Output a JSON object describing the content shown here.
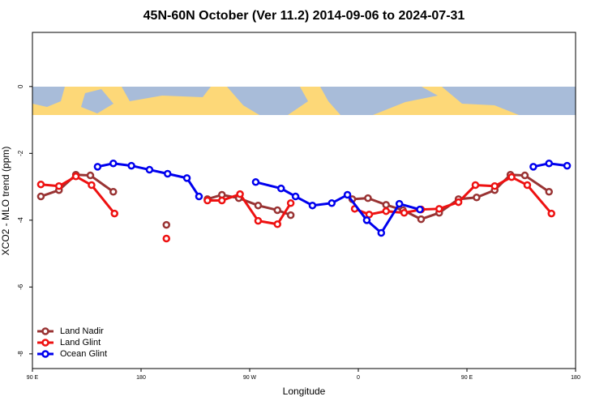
{
  "chart_data": {
    "type": "line",
    "title": "45N-60N October (Ver 11.2)   2014-09-06 to 2024-07-31",
    "xlabel": "Longitude",
    "ylabel": "XCO2 - MLO trend (ppm)",
    "xlim": [
      90,
      540
    ],
    "ylim": [
      -8.44,
      1.62
    ],
    "xticks": [
      {
        "value": 90,
        "label": "90 E"
      },
      180,
      {
        "value": 270,
        "label": "90 W"
      },
      {
        "value": 360,
        "label": "0"
      },
      {
        "value": 450,
        "label": "90 E"
      },
      {
        "value": 540,
        "label": "180"
      }
    ],
    "yticks": [
      0,
      -2,
      -4,
      -6,
      -8
    ],
    "legend": "bottom-left",
    "series": [
      {
        "name": "Land Nadir",
        "color": "#993333",
        "x": [
          97,
          112,
          126,
          138,
          157,
          null,
          201,
          null,
          235,
          247,
          261,
          277,
          293,
          304,
          null,
          355,
          368,
          383,
          397,
          412,
          427,
          443,
          458,
          473,
          486,
          498,
          518
        ],
        "values": [
          -3.29,
          -3.1,
          -2.64,
          -2.66,
          -3.15,
          null,
          -4.14,
          null,
          -3.37,
          -3.24,
          -3.34,
          -3.56,
          -3.7,
          -3.85,
          null,
          -3.37,
          -3.34,
          -3.54,
          -3.7,
          -3.97,
          -3.78,
          -3.37,
          -3.32,
          -3.1,
          -2.64,
          -2.66,
          -3.15
        ]
      },
      {
        "name": "Land Glint",
        "color": "#ee1111",
        "x": [
          97,
          112,
          126,
          139,
          158,
          null,
          201,
          null,
          235,
          247,
          262,
          277,
          293,
          304,
          null,
          357,
          369,
          383,
          398,
          412,
          427,
          443,
          457,
          473,
          487,
          500,
          520
        ],
        "values": [
          -2.93,
          -2.98,
          -2.69,
          -2.95,
          -3.8,
          null,
          -4.55,
          null,
          -3.41,
          -3.41,
          -3.22,
          -4.02,
          -4.12,
          -3.49,
          null,
          -3.66,
          -3.83,
          -3.73,
          -3.78,
          -3.68,
          -3.66,
          -3.46,
          -2.95,
          -2.98,
          -2.71,
          -2.95,
          -3.8
        ]
      },
      {
        "name": "Ocean Glint",
        "color": "#0000ee",
        "x": [
          144,
          157,
          172,
          187,
          202,
          218,
          228,
          null,
          275,
          296,
          308,
          322,
          338,
          351,
          367,
          379,
          394,
          411,
          null,
          505,
          518,
          533
        ],
        "values": [
          -2.4,
          -2.3,
          -2.37,
          -2.49,
          -2.61,
          -2.74,
          -3.29,
          null,
          -2.86,
          -3.05,
          -3.29,
          -3.56,
          -3.49,
          -3.24,
          -4.0,
          -4.38,
          -3.51,
          -3.68,
          null,
          -2.4,
          -2.3,
          -2.37
        ]
      }
    ]
  }
}
